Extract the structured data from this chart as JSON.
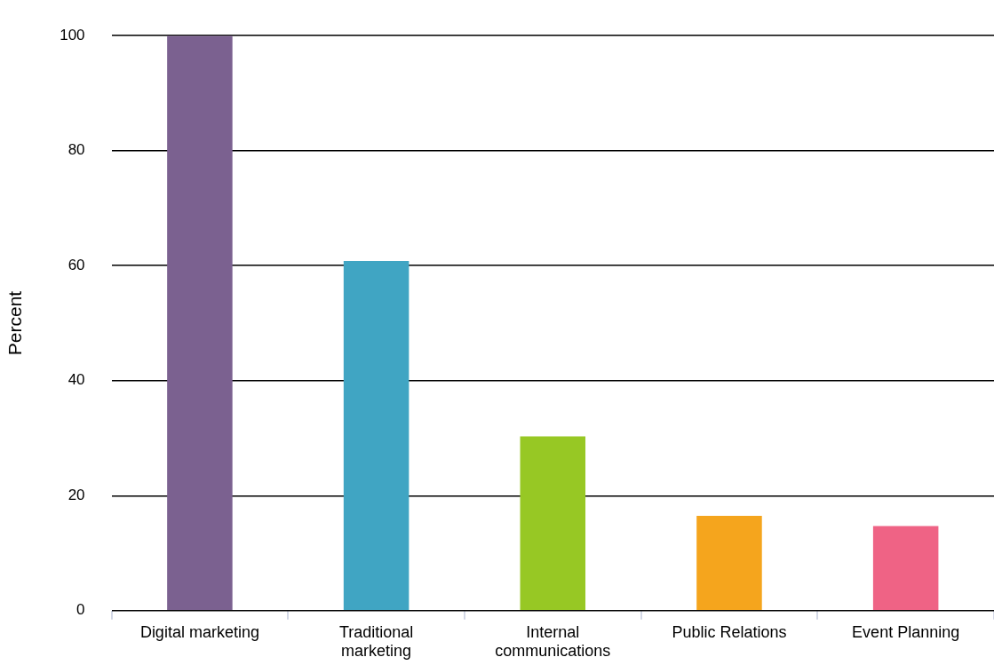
{
  "chart_data": {
    "type": "bar",
    "ylabel": "Percent",
    "categories": [
      "Digital marketing",
      "Traditional marketing",
      "Internal communications",
      "Public Relations",
      "Event Planning"
    ],
    "values": [
      100,
      60.8,
      30.3,
      16.5,
      14.7
    ],
    "colors": [
      "#7b6190",
      "#40a5c3",
      "#97c824",
      "#f5a51d",
      "#ef6385"
    ],
    "ylim": [
      0,
      100
    ],
    "yticks": [
      0,
      20,
      40,
      60,
      80,
      100
    ],
    "grid": "y",
    "legend": false
  }
}
